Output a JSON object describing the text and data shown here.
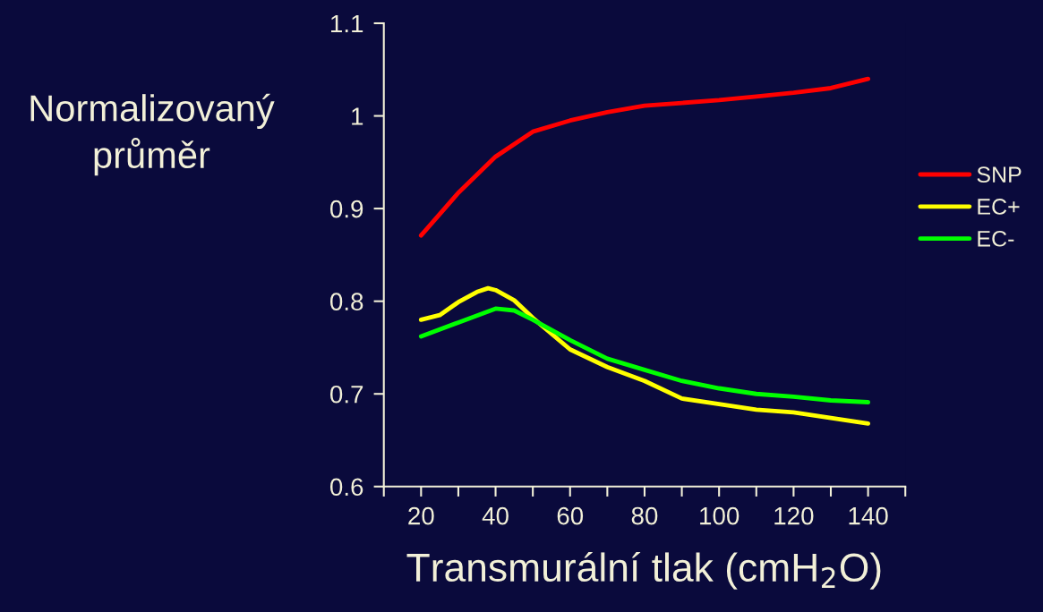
{
  "chart_data": {
    "type": "line",
    "xlabel": "Transmurální tlak (cmH$_{2}$O)",
    "ylabel": "Normalizovaný\nprůměr",
    "series": [
      {
        "name": "SNP",
        "color": "#ff0000",
        "x": [
          20,
          30,
          40,
          50,
          60,
          70,
          80,
          90,
          100,
          110,
          120,
          130,
          140
        ],
        "values": [
          0.871,
          0.917,
          0.956,
          0.983,
          0.995,
          1.004,
          1.011,
          1.014,
          1.017,
          1.021,
          1.025,
          1.03,
          1.04
        ]
      },
      {
        "name": "EC+",
        "color": "#ffff00",
        "x": [
          20,
          25,
          30,
          35,
          38,
          40,
          45,
          50,
          60,
          70,
          80,
          90,
          100,
          110,
          120,
          130,
          140
        ],
        "values": [
          0.78,
          0.785,
          0.799,
          0.81,
          0.814,
          0.812,
          0.801,
          0.782,
          0.748,
          0.729,
          0.714,
          0.695,
          0.689,
          0.683,
          0.68,
          0.674,
          0.668
        ]
      },
      {
        "name": "EC-",
        "color": "#00ff00",
        "x": [
          20,
          30,
          40,
          45,
          50,
          60,
          70,
          80,
          90,
          100,
          110,
          120,
          130,
          140
        ],
        "values": [
          0.762,
          0.777,
          0.792,
          0.79,
          0.78,
          0.758,
          0.738,
          0.726,
          0.714,
          0.706,
          0.7,
          0.697,
          0.693,
          0.691
        ]
      }
    ],
    "xlim": [
      10,
      150
    ],
    "ylim": [
      0.6,
      1.1
    ],
    "xticks": [
      {
        "value": 10,
        "label": null
      },
      20,
      {
        "value": 30,
        "label": null
      },
      40,
      {
        "value": 50,
        "label": null
      },
      60,
      {
        "value": 70,
        "label": null
      },
      80,
      {
        "value": 90,
        "label": null
      },
      100,
      {
        "value": 110,
        "label": null
      },
      120,
      {
        "value": 130,
        "label": null
      },
      140,
      {
        "value": 150,
        "label": null
      }
    ],
    "yticks": [
      0.6,
      0.7,
      0.8,
      0.9,
      {
        "value": 1.0,
        "label": "1"
      },
      1.1
    ],
    "grid": false,
    "legend": "right",
    "marker": "none",
    "line_style": "solid"
  }
}
